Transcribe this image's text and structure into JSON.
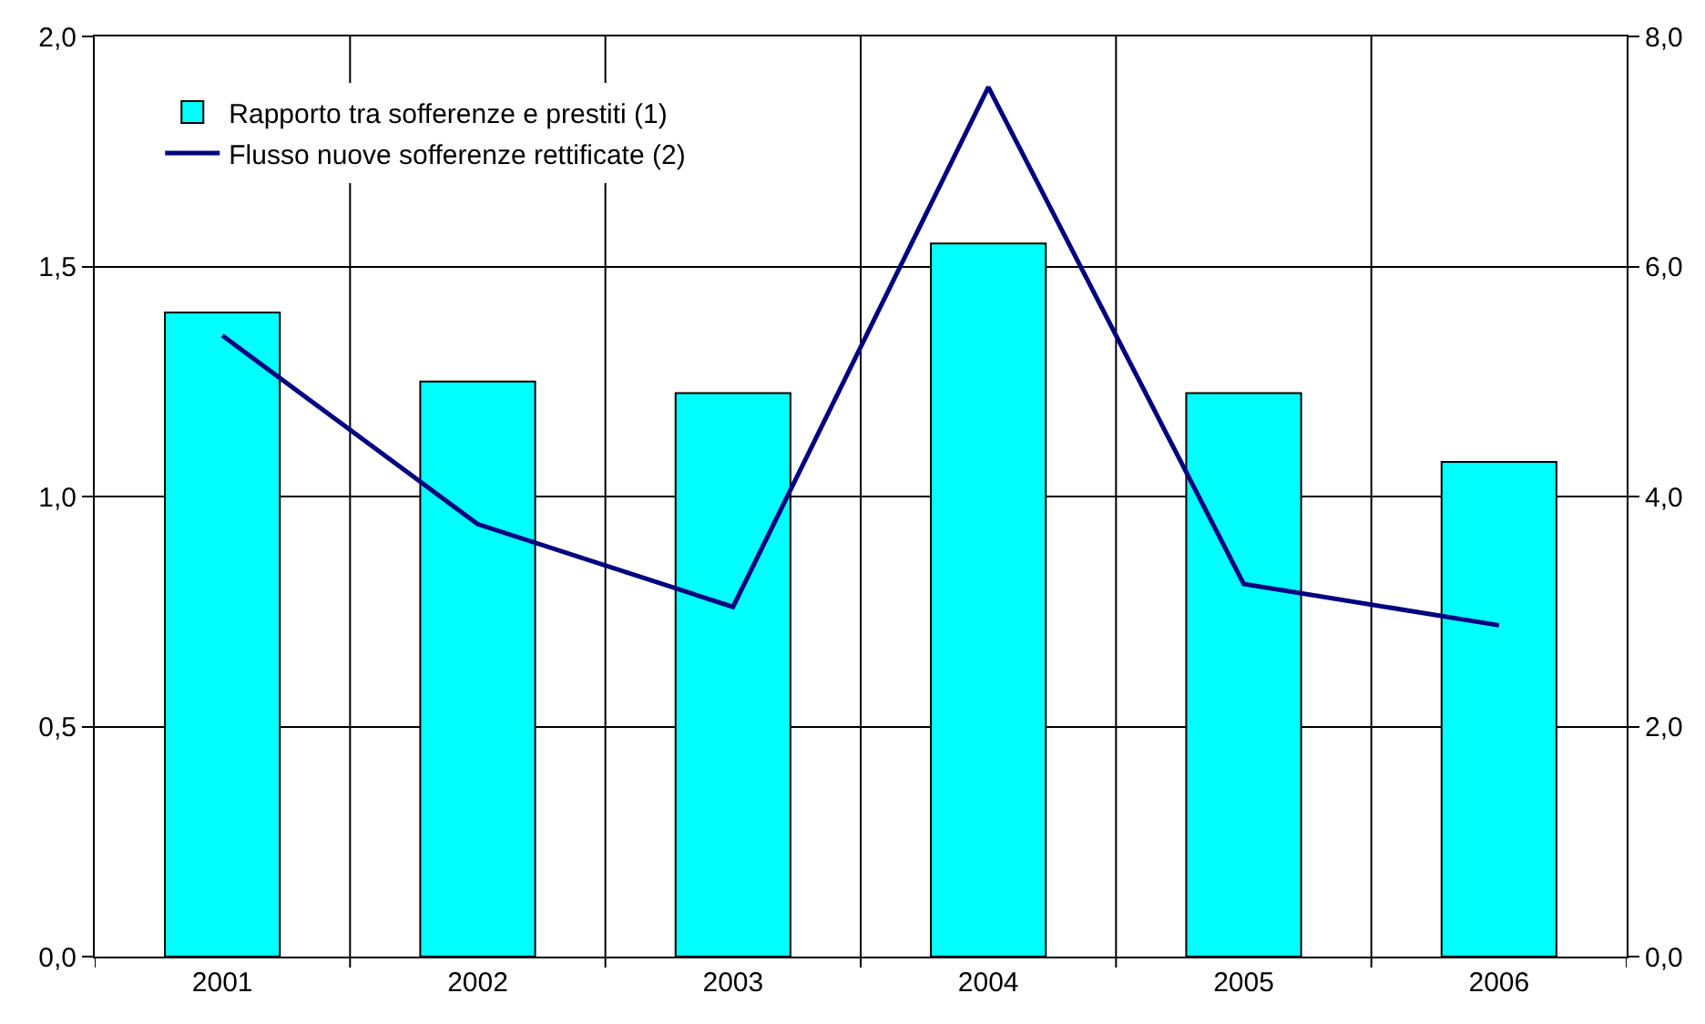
{
  "chart_data": {
    "type": "bar",
    "categories": [
      "2001",
      "2002",
      "2003",
      "2004",
      "2005",
      "2006"
    ],
    "series": [
      {
        "name": "Rapporto tra sofferenze e prestiti (1)",
        "color": "#00ffff",
        "axis": "y2",
        "values": [
          5.6,
          5.0,
          4.9,
          6.2,
          4.9,
          4.3
        ]
      },
      {
        "name": "Flusso nuove sofferenze rettificate (2)",
        "type": "line",
        "color": "#000080",
        "values": [
          1.35,
          0.94,
          0.76,
          1.89,
          0.81,
          0.72
        ]
      }
    ],
    "ylim": [
      0,
      2
    ],
    "yticks": [
      {
        "value": 0,
        "label": "0,0"
      },
      {
        "value": 0.5,
        "label": "0,5"
      },
      {
        "value": 1,
        "label": "1,0"
      },
      {
        "value": 1.5,
        "label": "1,5"
      },
      {
        "value": 2,
        "label": "2,0"
      }
    ],
    "y2lim": [
      0,
      8
    ],
    "y2ticks": [
      {
        "value": 0,
        "label": "0,0"
      },
      {
        "value": 2,
        "label": "2,0"
      },
      {
        "value": 4,
        "label": "4,0"
      },
      {
        "value": 6,
        "label": "6,0"
      },
      {
        "value": 8,
        "label": "8,0"
      }
    ],
    "grid": true,
    "legend": "top left",
    "marker": "none",
    "line_style": "solid"
  }
}
